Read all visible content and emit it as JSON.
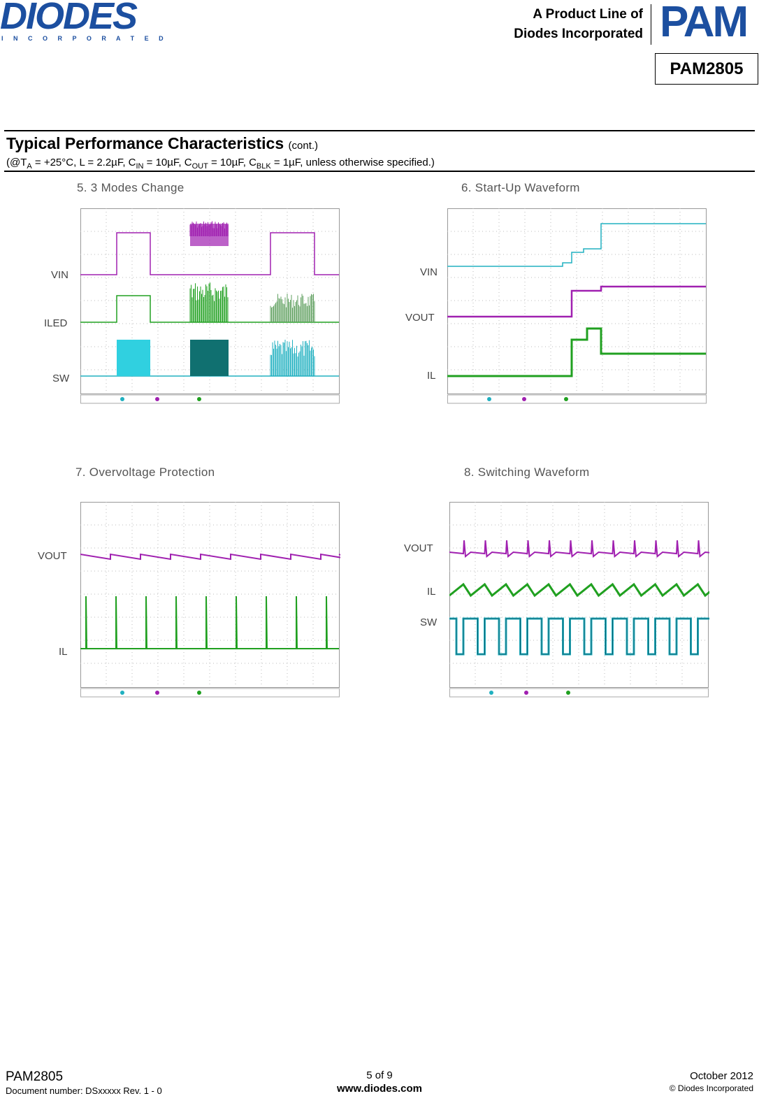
{
  "header": {
    "logo": "DIODES",
    "logo_sub": "I N C O R P O R A T E D",
    "product_line": "A Product Line of",
    "company": "Diodes Incorporated",
    "pam_logo": "PAM",
    "part": "PAM2805"
  },
  "section": {
    "title": "Typical Performance Characteristics",
    "cont": "(cont.)",
    "conditions": [
      "(@T",
      "A",
      " = +25°C, L = 2.2µF, C",
      "IN",
      " = 10µF, C",
      "OUT",
      " = 10µF, C",
      "BLK",
      " = 1µF, unless otherwise specified.)"
    ]
  },
  "figures": [
    {
      "title": "5.  3 Modes Change",
      "traces": [
        "VIN",
        "ILED",
        "SW"
      ]
    },
    {
      "title": "6. Start-Up Waveform",
      "traces": [
        "VIN",
        "VOUT",
        "IL"
      ]
    },
    {
      "title": "7. Overvoltage Protection",
      "traces": [
        "VOUT",
        "IL"
      ]
    },
    {
      "title": "8. Switching Waveform",
      "traces": [
        "VOUT",
        "IL",
        "SW"
      ]
    }
  ],
  "footer": {
    "part": "PAM2805",
    "doc": "Document number: DSxxxxx Rev. 1 - 0",
    "page": "5 of 9",
    "url": "www.diodes.com",
    "date": "October 2012",
    "copyright": "© Diodes Incorporated"
  }
}
